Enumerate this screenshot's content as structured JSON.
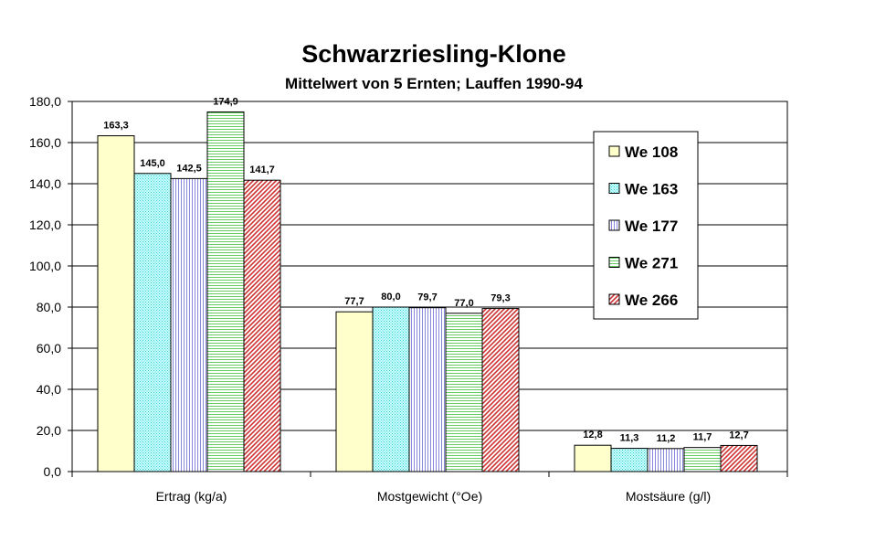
{
  "chart_data": {
    "type": "bar",
    "title": "Schwarzriesling-Klone",
    "subtitle": "Mittelwert von 5 Ernten; Lauffen 1990-94",
    "categories": [
      "Ertrag (kg/a)",
      "Mostgewicht (°Oe)",
      "Mostsäure (g/l)"
    ],
    "series": [
      {
        "name": "We 108",
        "values": [
          163.3,
          77.7,
          12.8
        ],
        "labels": [
          "163,3",
          "77,7",
          "12,8"
        ],
        "color": "#ffffcc",
        "pattern": "solid"
      },
      {
        "name": "We 163",
        "values": [
          145.0,
          80.0,
          11.3
        ],
        "labels": [
          "145,0",
          "80,0",
          "11,3"
        ],
        "color": "#ccffff",
        "pattern": "dots"
      },
      {
        "name": "We 177",
        "values": [
          142.5,
          79.7,
          11.2
        ],
        "labels": [
          "142,5",
          "79,7",
          "11,2"
        ],
        "color": "#ccccff",
        "pattern": "vlines"
      },
      {
        "name": "We 271",
        "values": [
          174.9,
          77.0,
          11.7
        ],
        "labels": [
          "174,9",
          "77,0",
          "11,7"
        ],
        "color": "#ccffcc",
        "pattern": "hlines"
      },
      {
        "name": "We 266",
        "values": [
          141.7,
          79.3,
          12.7
        ],
        "labels": [
          "141,7",
          "79,3",
          "12,7"
        ],
        "color": "#cc3333",
        "pattern": "diag"
      }
    ],
    "yticks": [
      "0,0",
      "20,0",
      "40,0",
      "60,0",
      "80,0",
      "100,0",
      "120,0",
      "140,0",
      "160,0",
      "180,0"
    ],
    "ylim": [
      0,
      180
    ],
    "grid": true,
    "legend_position": "top-right"
  }
}
